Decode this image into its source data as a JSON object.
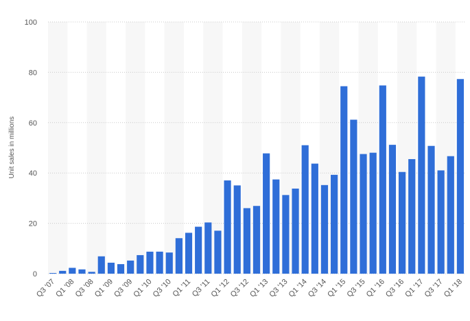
{
  "chart_data": {
    "type": "bar",
    "y_label": "Unit sales in millions",
    "categories": [
      "Q3 '07",
      null,
      "Q1 '08",
      null,
      "Q3 '08",
      null,
      "Q1 '09",
      null,
      "Q3 '09",
      null,
      "Q1 '10",
      null,
      "Q3 '10",
      null,
      "Q1 '11",
      null,
      "Q3 '11",
      null,
      "Q1 '12",
      null,
      "Q3 '12",
      null,
      "Q1 '13",
      null,
      "Q3 '13",
      null,
      "Q1 '14",
      null,
      "Q3 '14",
      null,
      "Q1 '15",
      null,
      "Q3 '15",
      null,
      "Q1 '16",
      null,
      "Q3 '16",
      null,
      "Q1 '17",
      null,
      "Q3 '17",
      null,
      "Q1 '18"
    ],
    "values": [
      0.27,
      1.12,
      2.32,
      1.7,
      0.72,
      6.89,
      4.36,
      3.79,
      5.21,
      7.37,
      8.74,
      8.75,
      8.4,
      14.1,
      16.24,
      18.65,
      20.34,
      17.07,
      37.04,
      35.06,
      26.03,
      26.91,
      47.79,
      37.43,
      31.24,
      33.8,
      51.03,
      43.72,
      35.2,
      39.27,
      74.47,
      61.17,
      47.53,
      48.05,
      74.78,
      51.19,
      40.4,
      45.51,
      78.29,
      50.76,
      41.03,
      46.68,
      77.32
    ],
    "color": "#2f6ed8",
    "ylim": [
      0,
      100
    ],
    "yticks": [
      0,
      20,
      40,
      60,
      80,
      100
    ],
    "grid": true
  }
}
